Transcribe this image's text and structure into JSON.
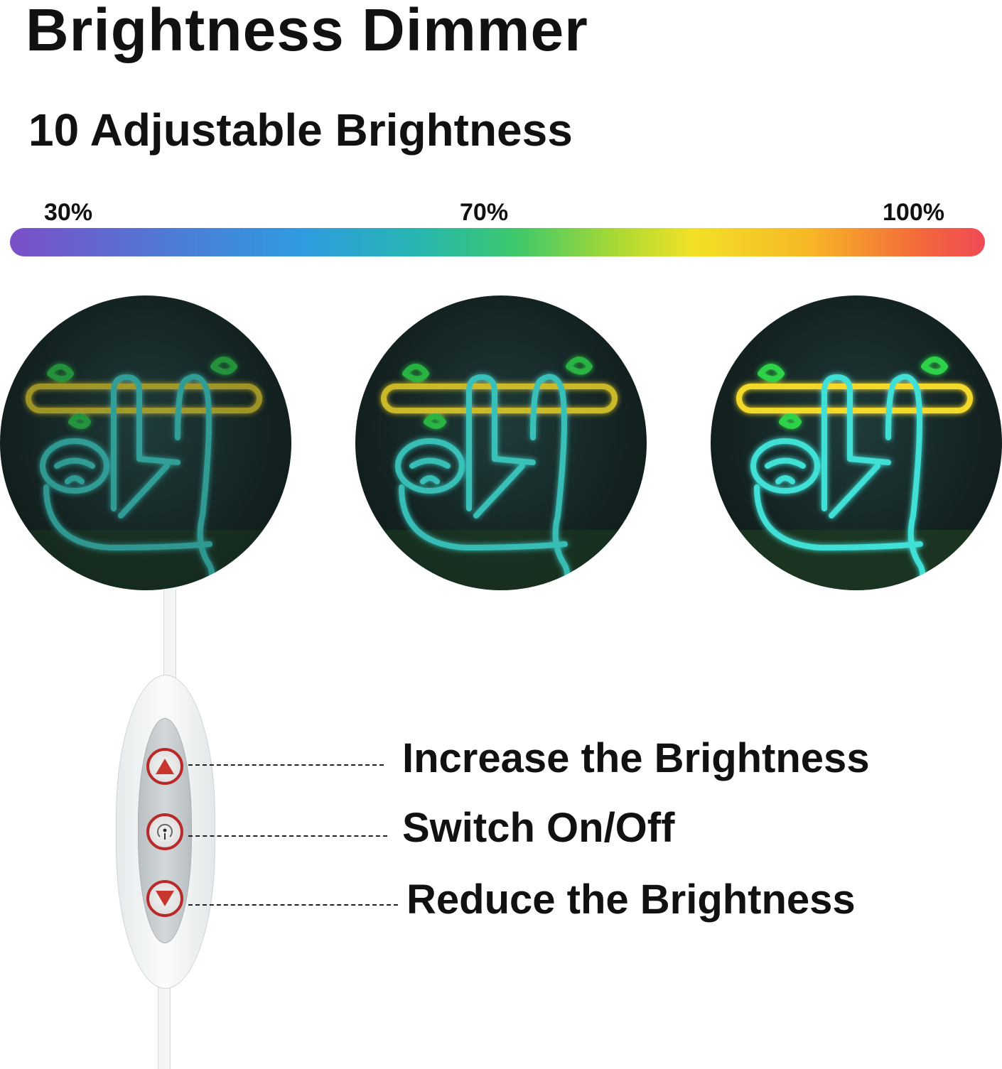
{
  "header": {
    "title": "Brightness Dimmer",
    "subtitle": "10 Adjustable Brightness"
  },
  "scale": {
    "labels": [
      "30%",
      "70%",
      "100%"
    ],
    "gradient_colors": [
      "#7b4fc8",
      "#2f9be0",
      "#3dc86a",
      "#f2e126",
      "#f7b726",
      "#ef4a55"
    ]
  },
  "product_images": [
    {
      "brightness": "30%"
    },
    {
      "brightness": "70%"
    },
    {
      "brightness": "100%"
    }
  ],
  "controller": {
    "buttons": [
      {
        "icon": "triangle-up-icon",
        "label": "Increase the Brightness"
      },
      {
        "icon": "power-icon",
        "label": "Switch On/Off"
      },
      {
        "icon": "triangle-down-icon",
        "label": "Reduce the Brightness"
      }
    ],
    "button_color": "#b82a2a"
  },
  "colors": {
    "neon_yellow": "#f2d92a",
    "neon_green": "#2fd24a",
    "neon_cyan": "#3fe0d6"
  }
}
